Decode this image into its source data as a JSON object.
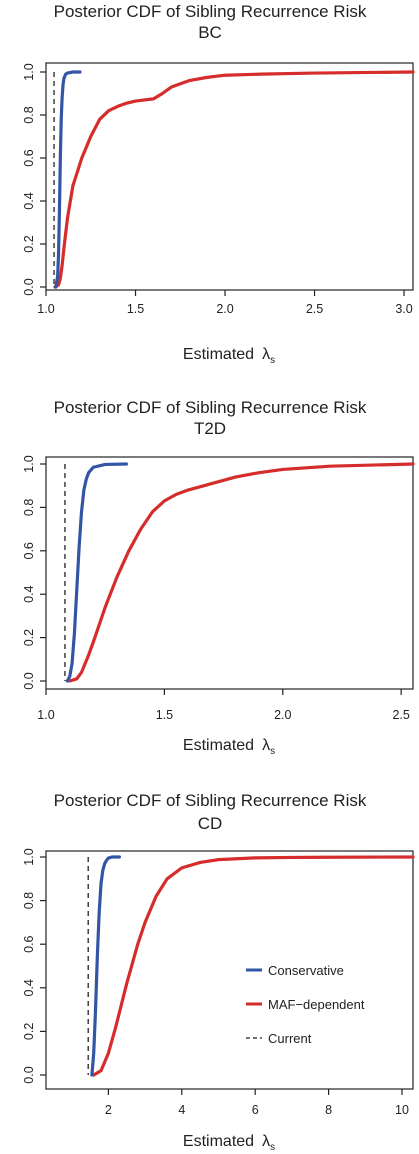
{
  "chart_data": [
    {
      "type": "line",
      "title": "Posterior CDF of Sibling Recurrence Risk",
      "subtitle": "BC",
      "xlabel": "Estimated",
      "xlabel_symbol": "λ",
      "xlabel_subscript": "s",
      "xlim": [
        1.0,
        3.05
      ],
      "ylim": [
        0,
        1.0
      ],
      "xticks": [
        1.0,
        1.5,
        2.0,
        2.5,
        3.0
      ],
      "xtick_labels": [
        "1.0",
        "1.5",
        "2.0",
        "2.5",
        "3.0"
      ],
      "yticks": [
        0,
        0.2,
        0.4,
        0.6,
        0.8,
        1.0
      ],
      "ytick_labels": [
        "0.0",
        "0.2",
        "0.4",
        "0.6",
        "0.8",
        "1.0"
      ],
      "current_x": 1.045,
      "series": [
        {
          "key": "conservative",
          "color": "#3355a6",
          "x": [
            1.055,
            1.065,
            1.07,
            1.075,
            1.08,
            1.085,
            1.09,
            1.095,
            1.1,
            1.11,
            1.12,
            1.15,
            1.19
          ],
          "y": [
            0.0,
            0.05,
            0.15,
            0.35,
            0.6,
            0.78,
            0.88,
            0.94,
            0.97,
            0.99,
            0.995,
            1.0,
            1.0
          ]
        },
        {
          "key": "maf",
          "color": "#d62c2c",
          "x": [
            1.05,
            1.07,
            1.08,
            1.09,
            1.1,
            1.12,
            1.15,
            1.2,
            1.25,
            1.3,
            1.35,
            1.4,
            1.45,
            1.5,
            1.55,
            1.6,
            1.65,
            1.7,
            1.8,
            1.9,
            2.0,
            2.2,
            2.5,
            3.05
          ],
          "y": [
            0.0,
            0.01,
            0.04,
            0.1,
            0.18,
            0.32,
            0.47,
            0.6,
            0.7,
            0.78,
            0.82,
            0.84,
            0.855,
            0.865,
            0.87,
            0.875,
            0.9,
            0.93,
            0.96,
            0.975,
            0.985,
            0.99,
            0.995,
            1.0
          ]
        }
      ]
    },
    {
      "type": "line",
      "title": "Posterior CDF of Sibling Recurrence Risk",
      "subtitle": "T2D",
      "xlabel": "Estimated",
      "xlabel_symbol": "λ",
      "xlabel_subscript": "s",
      "xlim": [
        1.0,
        2.55
      ],
      "ylim": [
        0,
        1.0
      ],
      "xticks": [
        1.0,
        1.5,
        2.0,
        2.5
      ],
      "xtick_labels": [
        "1.0",
        "1.5",
        "2.0",
        "2.5"
      ],
      "yticks": [
        0,
        0.2,
        0.4,
        0.6,
        0.8,
        1.0
      ],
      "ytick_labels": [
        "0.0",
        "0.2",
        "0.4",
        "0.6",
        "0.8",
        "1.0"
      ],
      "current_x": 1.08,
      "series": [
        {
          "key": "conservative",
          "color": "#3355a6",
          "x": [
            1.09,
            1.1,
            1.11,
            1.12,
            1.13,
            1.14,
            1.15,
            1.16,
            1.17,
            1.18,
            1.2,
            1.25,
            1.34
          ],
          "y": [
            0.0,
            0.02,
            0.08,
            0.22,
            0.42,
            0.62,
            0.78,
            0.88,
            0.93,
            0.96,
            0.985,
            0.998,
            1.0
          ]
        },
        {
          "key": "maf",
          "color": "#d62c2c",
          "x": [
            1.1,
            1.13,
            1.15,
            1.18,
            1.2,
            1.25,
            1.3,
            1.35,
            1.4,
            1.45,
            1.5,
            1.55,
            1.6,
            1.7,
            1.8,
            1.9,
            2.0,
            2.2,
            2.55
          ],
          "y": [
            0.0,
            0.01,
            0.04,
            0.12,
            0.18,
            0.34,
            0.48,
            0.6,
            0.7,
            0.78,
            0.83,
            0.86,
            0.88,
            0.91,
            0.94,
            0.96,
            0.975,
            0.99,
            1.0
          ]
        }
      ]
    },
    {
      "type": "line",
      "title": "Posterior CDF of Sibling Recurrence Risk",
      "subtitle": "CD",
      "xlabel": "Estimated",
      "xlabel_symbol": "λ",
      "xlabel_subscript": "s",
      "xlim": [
        0.3,
        10.3
      ],
      "ylim": [
        0,
        1.0
      ],
      "xticks": [
        2,
        4,
        6,
        8,
        10
      ],
      "xtick_labels": [
        "2",
        "4",
        "6",
        "8",
        "10"
      ],
      "yticks": [
        0,
        0.2,
        0.4,
        0.6,
        0.8,
        1.0
      ],
      "ytick_labels": [
        "0.0",
        "0.2",
        "0.4",
        "0.6",
        "0.8",
        "1.0"
      ],
      "current_x": 1.45,
      "legend": {
        "placement": "center-right",
        "entries": [
          {
            "label": "Conservative",
            "color": "#3355a6",
            "style": "solid"
          },
          {
            "label": "MAF−dependent",
            "color": "#d62c2c",
            "style": "solid"
          },
          {
            "label": "Current",
            "color": "#222222",
            "style": "dashed"
          }
        ]
      },
      "series": [
        {
          "key": "conservative",
          "color": "#3355a6",
          "x": [
            1.55,
            1.6,
            1.65,
            1.7,
            1.75,
            1.8,
            1.85,
            1.9,
            1.95,
            2.0,
            2.1,
            2.3
          ],
          "y": [
            0.0,
            0.1,
            0.3,
            0.55,
            0.75,
            0.88,
            0.94,
            0.97,
            0.985,
            0.995,
            1.0,
            1.0
          ]
        },
        {
          "key": "maf",
          "color": "#d62c2c",
          "x": [
            1.6,
            1.8,
            2.0,
            2.2,
            2.5,
            2.8,
            3.0,
            3.3,
            3.6,
            4.0,
            4.5,
            5.0,
            6.0,
            7.0,
            8.0,
            10.3
          ],
          "y": [
            0.0,
            0.02,
            0.1,
            0.22,
            0.42,
            0.6,
            0.7,
            0.82,
            0.9,
            0.95,
            0.975,
            0.988,
            0.996,
            0.998,
            0.999,
            1.0
          ]
        }
      ]
    }
  ]
}
